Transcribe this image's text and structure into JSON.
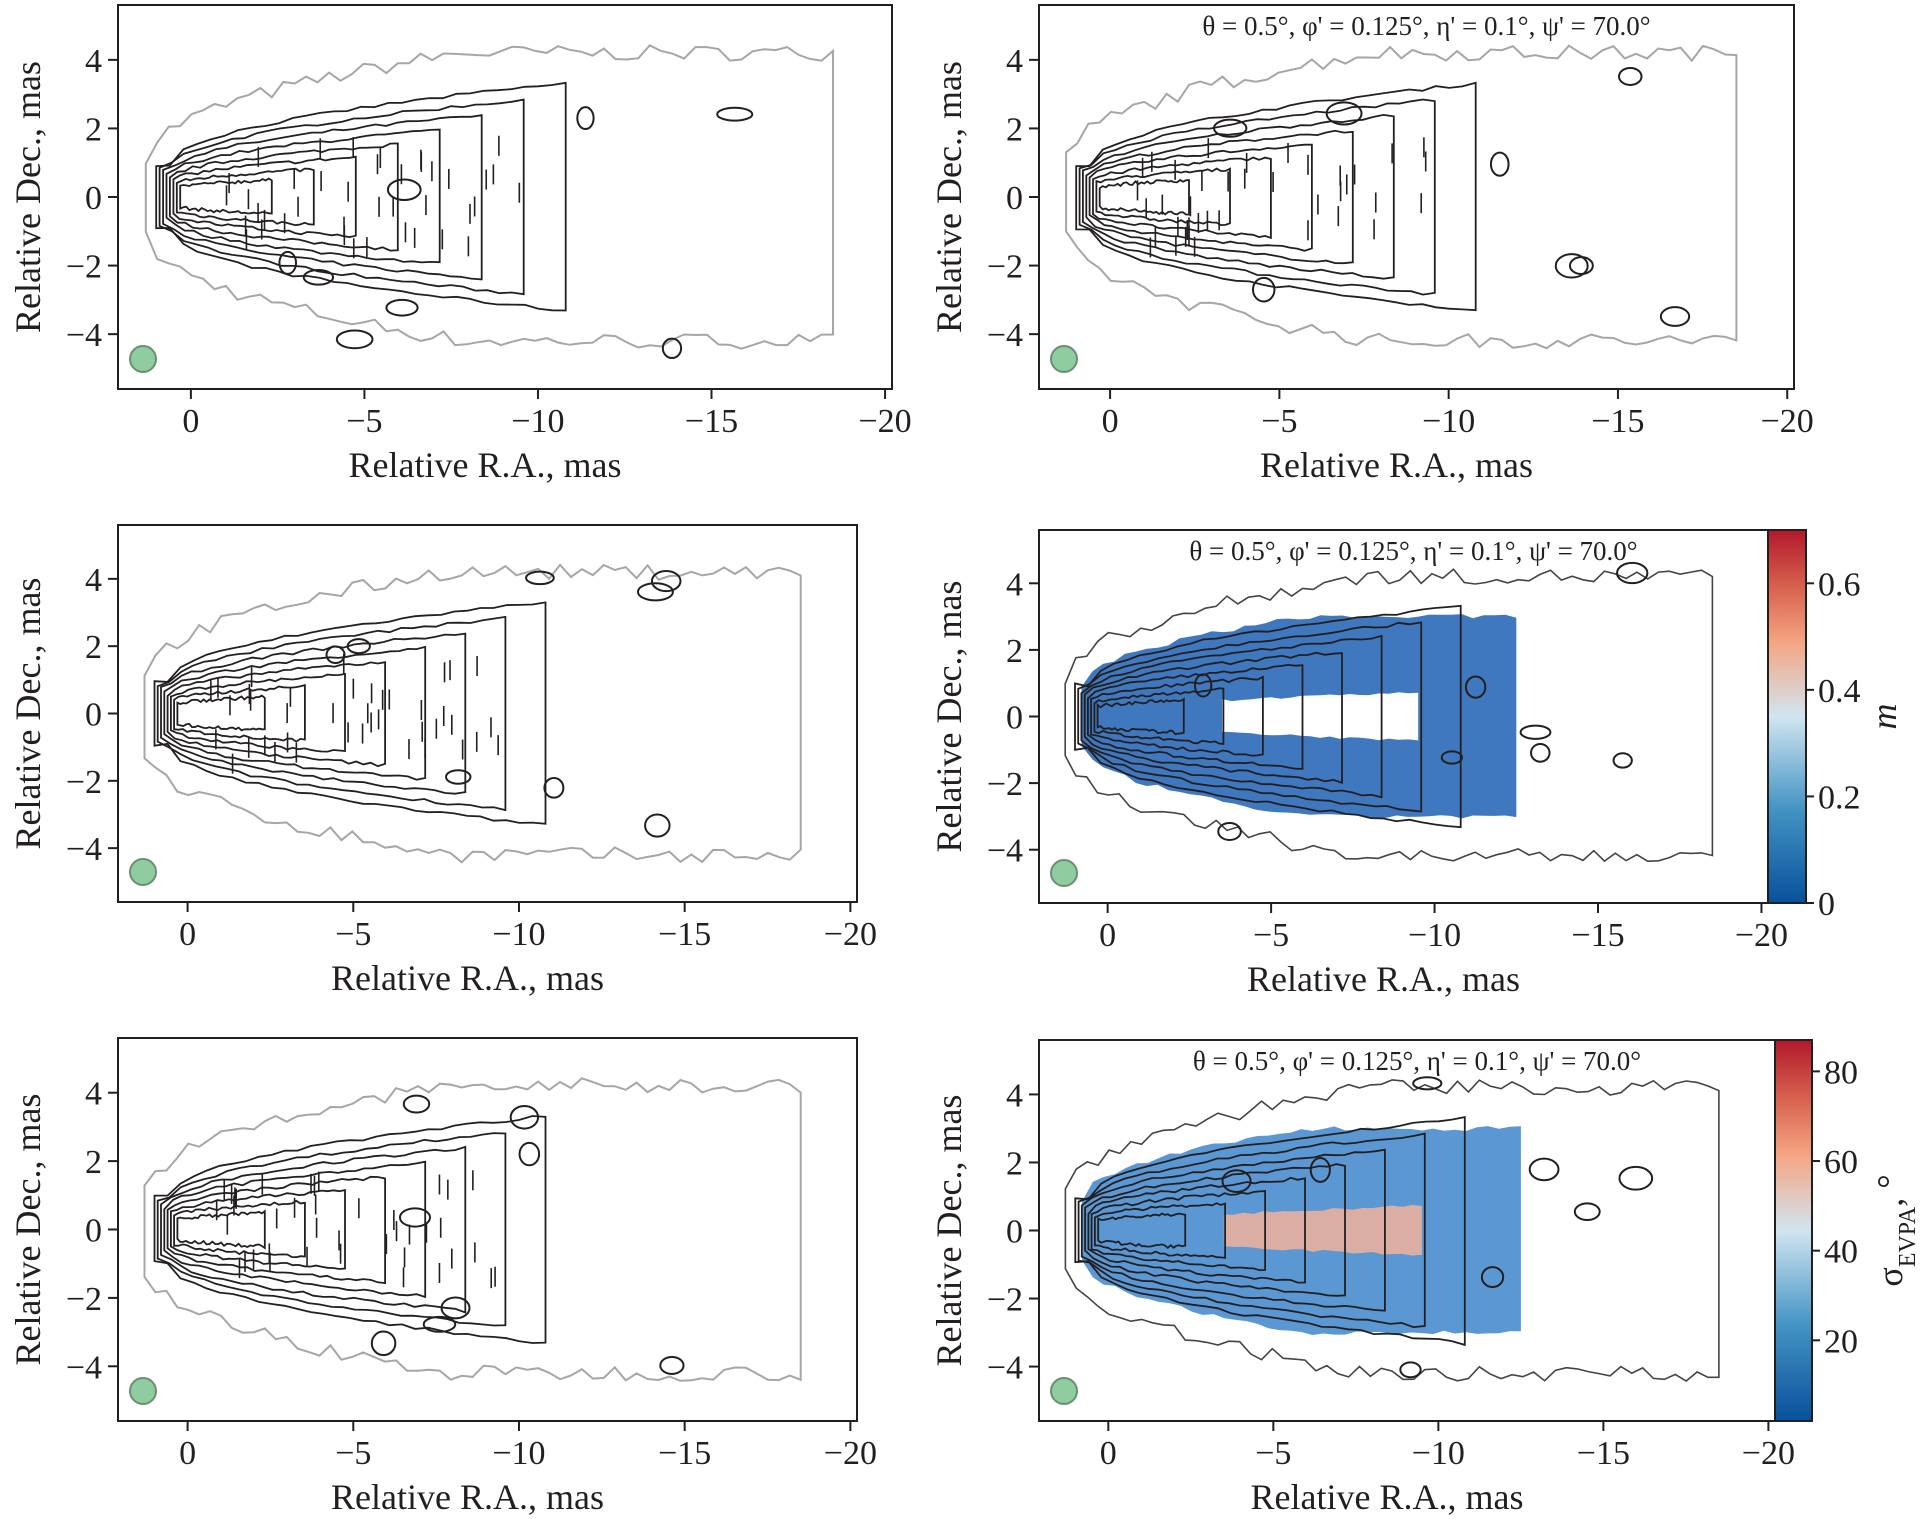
{
  "figure": {
    "panels": [
      {
        "id": "p1",
        "annotation": "",
        "colorbar": null
      },
      {
        "id": "p2",
        "annotation": "θ = 0.5°, φ' = 0.125°, η' = 0.1°, ψ' = 70.0°",
        "colorbar": null
      },
      {
        "id": "p3",
        "annotation": "",
        "colorbar": null
      },
      {
        "id": "p4",
        "annotation": "θ = 0.5°, φ' = 0.125°, η' = 0.1°, ψ' = 70.0°",
        "colorbar": "m"
      },
      {
        "id": "p5",
        "annotation": "",
        "colorbar": null
      },
      {
        "id": "p6",
        "annotation": "θ = 0.5°, φ' = 0.125°, η' = 0.1°, ψ' = 70.0°",
        "colorbar": "sigma"
      }
    ]
  },
  "chart_data": [
    {
      "type": "heatmap",
      "panel": "p1",
      "xlabel": "Relative R.A., mas",
      "ylabel": "Relative Dec., mas",
      "xlim": [
        2.1,
        -20.2
      ],
      "ylim": [
        -5.6,
        5.6
      ],
      "xticks": [
        "0",
        "−5",
        "−10",
        "−15",
        "−20"
      ],
      "yticks": [
        "4",
        "2",
        "0",
        "−2",
        "−4"
      ],
      "beam_color": "#8fcc9f"
    },
    {
      "type": "heatmap",
      "panel": "p2",
      "xlabel": "Relative R.A., mas",
      "ylabel": "Relative Dec., mas",
      "xlim": [
        2.1,
        -20.2
      ],
      "ylim": [
        -5.6,
        5.6
      ],
      "xticks": [
        "0",
        "−5",
        "−10",
        "−15",
        "−20"
      ],
      "yticks": [
        "4",
        "2",
        "0",
        "−2",
        "−4"
      ],
      "beam_color": "#8fcc9f"
    },
    {
      "type": "heatmap",
      "panel": "p3",
      "xlabel": "Relative R.A., mas",
      "ylabel": "Relative Dec., mas",
      "xlim": [
        2.1,
        -20.2
      ],
      "ylim": [
        -5.6,
        5.6
      ],
      "xticks": [
        "0",
        "−5",
        "−10",
        "−15",
        "−20"
      ],
      "yticks": [
        "4",
        "2",
        "0",
        "−2",
        "−4"
      ],
      "beam_color": "#8fcc9f"
    },
    {
      "type": "heatmap",
      "panel": "p4",
      "xlabel": "Relative R.A., mas",
      "ylabel": "Relative Dec., mas",
      "xlim": [
        2.1,
        -20.2
      ],
      "ylim": [
        -5.6,
        5.6
      ],
      "xticks": [
        "0",
        "−5",
        "−10",
        "−15",
        "−20"
      ],
      "yticks": [
        "4",
        "2",
        "0",
        "−2",
        "−4"
      ],
      "beam_color": "#8fcc9f",
      "colorbar": {
        "label": "m",
        "range": [
          0,
          0.7
        ],
        "ticks": [
          "0",
          "0.2",
          "0.4",
          "0.6"
        ],
        "colors": [
          "#08519c",
          "#4393c3",
          "#d1e5f0",
          "#f4a582",
          "#d6604d",
          "#b2182b"
        ]
      }
    },
    {
      "type": "heatmap",
      "panel": "p5",
      "xlabel": "Relative R.A., mas",
      "ylabel": "Relative Dec., mas",
      "xlim": [
        2.1,
        -20.2
      ],
      "ylim": [
        -5.6,
        5.6
      ],
      "xticks": [
        "0",
        "−5",
        "−10",
        "−15",
        "−20"
      ],
      "yticks": [
        "4",
        "2",
        "0",
        "−2",
        "−4"
      ],
      "beam_color": "#8fcc9f"
    },
    {
      "type": "heatmap",
      "panel": "p6",
      "xlabel": "Relative R.A., mas",
      "ylabel": "Relative Dec., mas",
      "xlim": [
        2.1,
        -20.2
      ],
      "ylim": [
        -5.6,
        5.6
      ],
      "xticks": [
        "0",
        "−5",
        "−10",
        "−15",
        "−20"
      ],
      "yticks": [
        "4",
        "2",
        "0",
        "−2",
        "−4"
      ],
      "beam_color": "#8fcc9f",
      "colorbar": {
        "label": "σ",
        "label_sub": "EVPA",
        "label_unit": ", °",
        "range": [
          2,
          87
        ],
        "ticks": [
          "20",
          "40",
          "60",
          "80"
        ],
        "colors": [
          "#08519c",
          "#4393c3",
          "#d1e5f0",
          "#f4a582",
          "#d6604d",
          "#b2182b"
        ]
      }
    }
  ]
}
